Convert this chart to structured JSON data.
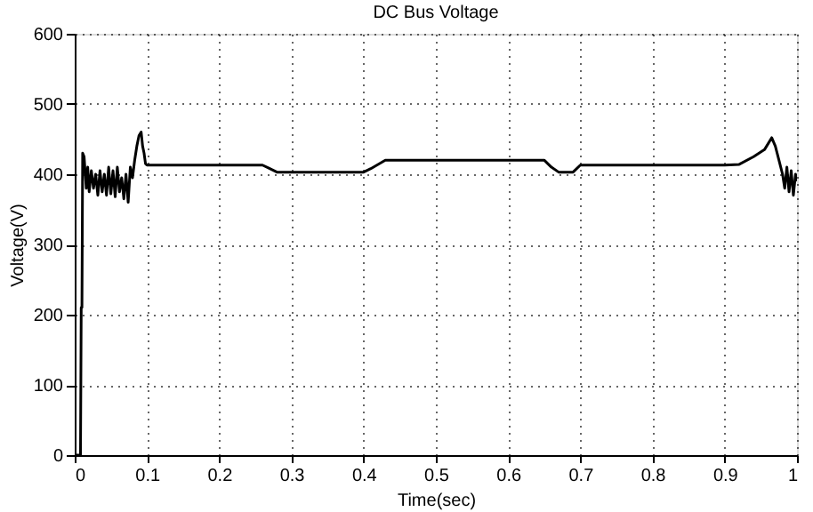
{
  "chart_data": {
    "type": "line",
    "title": "DC Bus Voltage",
    "xlabel": "Time(sec)",
    "ylabel": "Voltage(V)",
    "series": [
      {
        "color": "#000000",
        "x": [
          0,
          0.008,
          0.009,
          0.01,
          0.011,
          0.013,
          0.016,
          0.018,
          0.02,
          0.023,
          0.026,
          0.029,
          0.032,
          0.035,
          0.038,
          0.041,
          0.044,
          0.047,
          0.05,
          0.053,
          0.056,
          0.059,
          0.062,
          0.065,
          0.068,
          0.071,
          0.074,
          0.077,
          0.08,
          0.083,
          0.086,
          0.089,
          0.092,
          0.094,
          0.096,
          0.098,
          0.1,
          0.15,
          0.2,
          0.26,
          0.27,
          0.28,
          0.3,
          0.35,
          0.4,
          0.41,
          0.43,
          0.5,
          0.6,
          0.65,
          0.66,
          0.67,
          0.69,
          0.7,
          0.75,
          0.8,
          0.9,
          0.92,
          0.94,
          0.955,
          0.965,
          0.97,
          0.975,
          0.98,
          0.983,
          0.986,
          0.989,
          0.992,
          0.995,
          0.998,
          1.0
        ],
        "values": [
          0,
          0,
          210,
          210,
          430,
          425,
          380,
          410,
          375,
          405,
          380,
          400,
          370,
          405,
          375,
          400,
          370,
          410,
          372,
          405,
          368,
          410,
          375,
          395,
          365,
          400,
          360,
          410,
          395,
          420,
          440,
          455,
          460,
          440,
          430,
          415,
          413,
          413,
          413,
          413,
          408,
          403,
          403,
          403,
          403,
          408,
          420,
          420,
          420,
          420,
          410,
          403,
          403,
          413,
          413,
          413,
          413,
          414,
          425,
          435,
          452,
          440,
          420,
          400,
          380,
          410,
          375,
          405,
          370,
          400,
          390
        ]
      }
    ],
    "xlim": [
      0,
      1
    ],
    "ylim": [
      0,
      600
    ],
    "xticks": [
      0,
      0.1,
      0.2,
      0.3,
      0.4,
      0.5,
      0.6,
      0.7,
      0.8,
      0.9,
      1
    ],
    "yticks": [
      0,
      100,
      200,
      300,
      400,
      500,
      600
    ],
    "grid": true,
    "marker": "none",
    "line_style": "solid"
  }
}
